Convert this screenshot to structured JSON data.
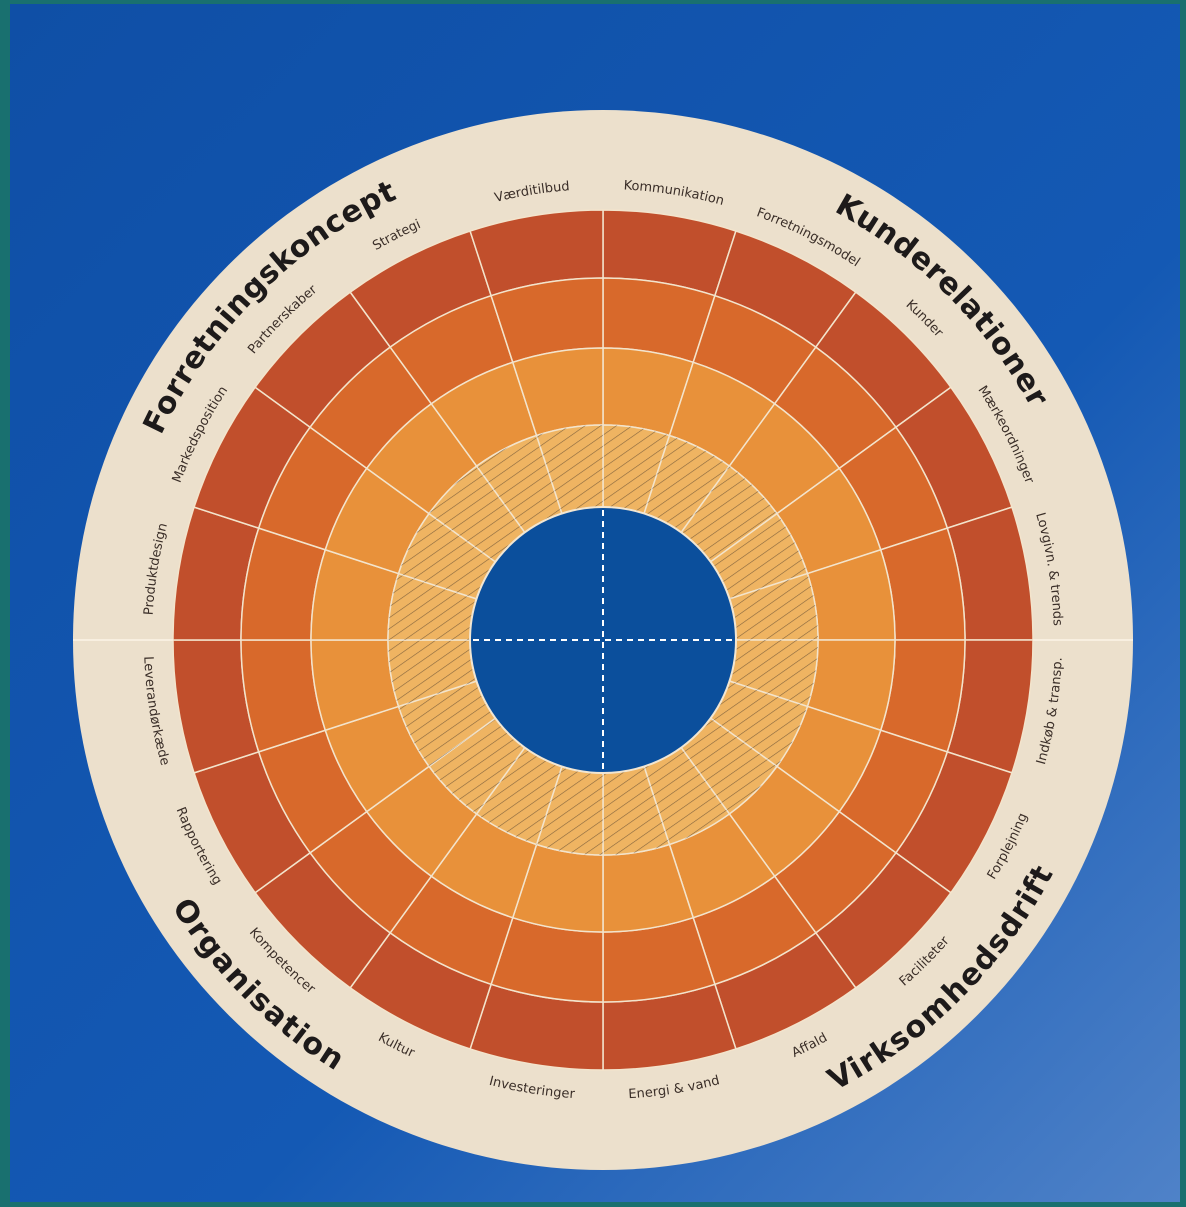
{
  "quadrants": [
    {
      "title": "Kunderelationer",
      "segments": [
        "Kommunikation",
        "Forretningsmodel",
        "Kunder",
        "Mærkeordninger",
        "Lovgivn. & trends"
      ]
    },
    {
      "title": "Virksomhedsdrift",
      "segments": [
        "Indkøb & transp.",
        "Forplejning",
        "Faciliteter",
        "Affald",
        "Energi & vand"
      ]
    },
    {
      "title": "Organisation",
      "segments": [
        "Investeringer",
        "Kultur",
        "Kompetencer",
        "Rapportering",
        "Leverandørkæde"
      ]
    },
    {
      "title": "Forretningskoncept",
      "segments": [
        "Produktdesign",
        "Markedsposition",
        "Partnerskaber",
        "Strategi",
        "Værditilbud"
      ]
    }
  ]
}
